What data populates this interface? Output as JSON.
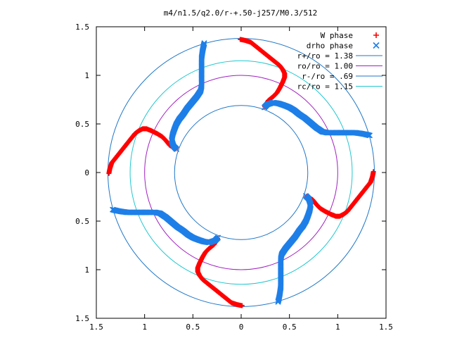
{
  "chart_data": {
    "type": "scatter",
    "title": "m4/n1.5/q2.0/r-+.50-j257/M0.3/512",
    "xlabel": "",
    "ylabel": "",
    "xlim": [
      -1.5,
      1.5
    ],
    "ylim": [
      -1.5,
      1.5
    ],
    "x_ticks": [
      -1.5,
      -1,
      -0.5,
      0,
      0.5,
      1,
      1.5
    ],
    "x_tick_labels": [
      "1.5",
      "1",
      "0.5",
      "0",
      "0.5",
      "1",
      "1.5"
    ],
    "y_ticks": [
      1.5,
      1,
      0.5,
      0,
      -0.5,
      -1,
      -1.5
    ],
    "y_tick_labels": [
      "1.5",
      "1",
      "0.5",
      "0",
      "0.5",
      "1",
      "1.5"
    ],
    "grid": false,
    "legend_position": "top-right",
    "symmetry": 4,
    "series": [
      {
        "name": "W phase",
        "kind": "points",
        "marker": "+",
        "color": "#ff0000",
        "base_points": [
          [
            -0.01,
            1.37
          ],
          [
            0.04,
            1.36
          ],
          [
            0.1,
            1.34
          ],
          [
            0.15,
            1.3
          ],
          [
            0.2,
            1.26
          ],
          [
            0.25,
            1.22
          ],
          [
            0.3,
            1.18
          ],
          [
            0.35,
            1.14
          ],
          [
            0.4,
            1.1
          ],
          [
            0.43,
            1.06
          ],
          [
            0.45,
            1.02
          ],
          [
            0.45,
            0.98
          ],
          [
            0.43,
            0.93
          ],
          [
            0.4,
            0.87
          ],
          [
            0.37,
            0.82
          ],
          [
            0.33,
            0.78
          ],
          [
            0.28,
            0.74
          ],
          [
            0.24,
            0.67
          ]
        ]
      },
      {
        "name": "drho phase",
        "kind": "points",
        "marker": "x",
        "color": "#1e7fe8",
        "base_points": [
          [
            0.24,
            0.67
          ],
          [
            0.27,
            0.7
          ],
          [
            0.33,
            0.72
          ],
          [
            0.39,
            0.71
          ],
          [
            0.45,
            0.69
          ],
          [
            0.5,
            0.67
          ],
          [
            0.55,
            0.64
          ],
          [
            0.6,
            0.6
          ],
          [
            0.66,
            0.56
          ],
          [
            0.72,
            0.51
          ],
          [
            0.78,
            0.46
          ],
          [
            0.84,
            0.42
          ],
          [
            0.89,
            0.41
          ],
          [
            0.95,
            0.41
          ],
          [
            1.02,
            0.41
          ],
          [
            1.1,
            0.41
          ],
          [
            1.18,
            0.41
          ],
          [
            1.25,
            0.4
          ],
          [
            1.3,
            0.39
          ],
          [
            1.34,
            0.38
          ]
        ]
      },
      {
        "name": "r+/ro = 1.38",
        "kind": "circle",
        "radius": 1.38,
        "color": "#1f77c8"
      },
      {
        "name": "ro/ro = 1.00",
        "kind": "circle",
        "radius": 1.0,
        "color": "#a020c0"
      },
      {
        "name": "r-/ro = .69",
        "kind": "circle",
        "radius": 0.69,
        "color": "#1f77c8"
      },
      {
        "name": "rc/ro = 1.15",
        "kind": "circle",
        "radius": 1.15,
        "color": "#20c8d0"
      }
    ]
  }
}
